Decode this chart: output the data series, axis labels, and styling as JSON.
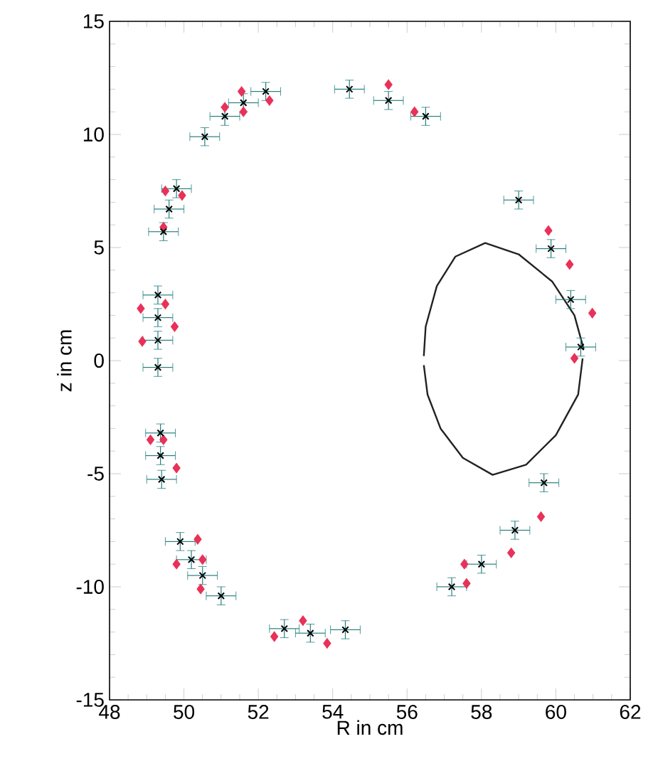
{
  "chart_data": {
    "type": "scatter",
    "xlabel": "R in cm",
    "ylabel": "z in cm",
    "xlim": [
      48,
      62
    ],
    "ylim": [
      -15,
      15
    ],
    "xticks": [
      48,
      50,
      52,
      54,
      56,
      58,
      60,
      62
    ],
    "yticks": [
      -15,
      -10,
      -5,
      0,
      5,
      10,
      15
    ],
    "series": [
      {
        "marker": "cross",
        "color": "#000000",
        "x": [
          49.3,
          49.3,
          49.3,
          49.3,
          49.45,
          49.6,
          49.8,
          50.56,
          51.1,
          51.6,
          52.2,
          54.45,
          55.5,
          56.5,
          59.0,
          59.87,
          60.4,
          60.67,
          59.68,
          58.9,
          58.0,
          57.2,
          54.34,
          53.4,
          52.7,
          51.0,
          50.5,
          50.2,
          49.9,
          49.4,
          49.37,
          49.37
        ],
        "values": [
          2.9,
          1.9,
          0.9,
          -0.3,
          5.7,
          6.7,
          7.6,
          9.9,
          10.8,
          11.4,
          11.9,
          12.0,
          11.5,
          10.8,
          7.1,
          4.95,
          2.7,
          0.6,
          -5.4,
          -7.5,
          -9.0,
          -10.0,
          -11.9,
          -12.05,
          -11.85,
          -10.4,
          -9.5,
          -8.8,
          -8.0,
          -5.25,
          -4.2,
          -3.2
        ],
        "errors": [
          0.4,
          0.4,
          0.4,
          0.4,
          0.4,
          0.4,
          0.4,
          0.4,
          0.4,
          0.4,
          0.4,
          0.4,
          0.4,
          0.4,
          0.4,
          0.4,
          0.4,
          0.4,
          0.4,
          0.4,
          0.4,
          0.4,
          0.4,
          0.4,
          0.4,
          0.4,
          0.4,
          0.4,
          0.4,
          0.4,
          0.4,
          0.4
        ],
        "xerrors": [
          0.4,
          0.4,
          0.4,
          0.4,
          0.4,
          0.4,
          0.4,
          0.4,
          0.4,
          0.4,
          0.4,
          0.4,
          0.4,
          0.4,
          0.4,
          0.4,
          0.4,
          0.4,
          0.4,
          0.4,
          0.4,
          0.4,
          0.4,
          0.4,
          0.4,
          0.4,
          0.4,
          0.4,
          0.4,
          0.4,
          0.4,
          0.4
        ]
      },
      {
        "marker": "diamond",
        "color": "#e8325a",
        "x": [
          48.84,
          49.5,
          49.75,
          48.88,
          49.45,
          49.5,
          49.95,
          51.1,
          51.6,
          51.55,
          52.3,
          55.5,
          56.2,
          59.8,
          60.37,
          60.98,
          60.5,
          59.6,
          58.8,
          57.54,
          57.6,
          49.1,
          49.45,
          49.8,
          50.37,
          49.8,
          50.5,
          50.45,
          52.43,
          53.2,
          53.85
        ],
        "values": [
          2.3,
          2.5,
          1.5,
          0.85,
          5.9,
          7.5,
          7.3,
          11.2,
          11.0,
          11.9,
          11.5,
          12.2,
          11.0,
          5.75,
          4.25,
          2.1,
          0.1,
          -6.9,
          -8.5,
          -9.0,
          -9.85,
          -3.5,
          -3.5,
          -4.75,
          -7.9,
          -9.0,
          -8.8,
          -10.1,
          -12.2,
          -11.5,
          -12.5
        ]
      },
      {
        "type": "line",
        "marker": "none",
        "color": "#222222",
        "x": [
          56.45,
          56.5,
          56.8,
          57.3,
          58.1,
          59.0,
          59.9,
          60.5,
          60.75
        ],
        "values": [
          0.2,
          1.5,
          3.3,
          4.6,
          5.2,
          4.7,
          3.5,
          2.0,
          0.5
        ]
      },
      {
        "type": "line",
        "marker": "none",
        "color": "#222222",
        "x": [
          56.45,
          56.55,
          56.9,
          57.5,
          58.3,
          59.2,
          60.0,
          60.6,
          60.72
        ],
        "values": [
          -0.2,
          -1.5,
          -3.0,
          -4.3,
          -5.05,
          -4.6,
          -3.3,
          -1.5,
          0.1
        ]
      }
    ]
  }
}
